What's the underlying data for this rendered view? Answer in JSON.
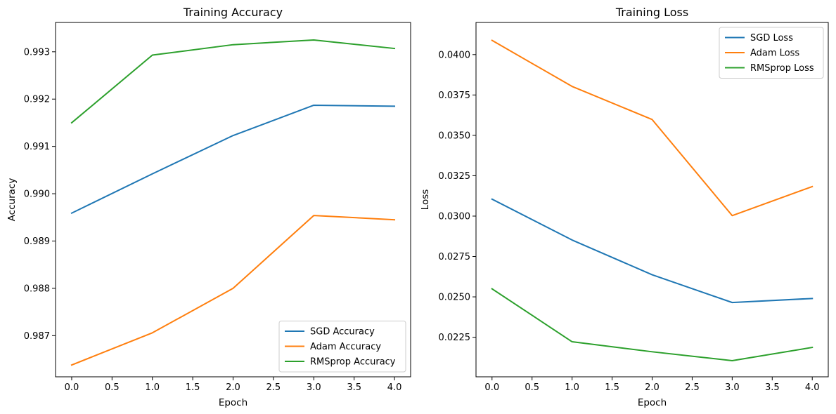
{
  "chart_data": [
    {
      "type": "line",
      "title": "Training Accuracy",
      "xlabel": "Epoch",
      "ylabel": "Accuracy",
      "x": [
        0,
        1,
        2,
        3,
        4
      ],
      "xlim": [
        -0.2,
        4.2
      ],
      "ylim": [
        0.98613,
        0.99362
      ],
      "xticks": [
        0.0,
        0.5,
        1.0,
        1.5,
        2.0,
        2.5,
        3.0,
        3.5,
        4.0
      ],
      "xtick_labels": [
        "0.0",
        "0.5",
        "1.0",
        "1.5",
        "2.0",
        "2.5",
        "3.0",
        "3.5",
        "4.0"
      ],
      "yticks": [
        0.987,
        0.988,
        0.989,
        0.99,
        0.991,
        0.992,
        0.993
      ],
      "ytick_labels": [
        "0.987",
        "0.988",
        "0.989",
        "0.990",
        "0.991",
        "0.992",
        "0.993"
      ],
      "grid": false,
      "legend_position": "lower-right",
      "series": [
        {
          "name": "SGD Accuracy",
          "color": "#1f77b4",
          "values": [
            0.98959,
            0.99042,
            0.99123,
            0.99187,
            0.99185
          ]
        },
        {
          "name": "Adam Accuracy",
          "color": "#ff7f0e",
          "values": [
            0.98638,
            0.98706,
            0.988,
            0.98954,
            0.98945
          ]
        },
        {
          "name": "RMSprop Accuracy",
          "color": "#2ca02c",
          "values": [
            0.9915,
            0.99293,
            0.99315,
            0.99325,
            0.99307
          ]
        }
      ]
    },
    {
      "type": "line",
      "title": "Training Loss",
      "xlabel": "Epoch",
      "ylabel": "Loss",
      "x": [
        0,
        1,
        2,
        3,
        4
      ],
      "xlim": [
        -0.2,
        4.2
      ],
      "ylim": [
        0.02005,
        0.04199
      ],
      "xticks": [
        0.0,
        0.5,
        1.0,
        1.5,
        2.0,
        2.5,
        3.0,
        3.5,
        4.0
      ],
      "xtick_labels": [
        "0.0",
        "0.5",
        "1.0",
        "1.5",
        "2.0",
        "2.5",
        "3.0",
        "3.5",
        "4.0"
      ],
      "yticks": [
        0.0225,
        0.025,
        0.0275,
        0.03,
        0.0325,
        0.035,
        0.0375,
        0.04
      ],
      "ytick_labels": [
        "0.0225",
        "0.0250",
        "0.0275",
        "0.0300",
        "0.0325",
        "0.0350",
        "0.0375",
        "0.0400"
      ],
      "grid": false,
      "legend_position": "upper-right",
      "series": [
        {
          "name": "SGD Loss",
          "color": "#1f77b4",
          "values": [
            0.03105,
            0.02852,
            0.02637,
            0.02465,
            0.0249
          ]
        },
        {
          "name": "Adam Loss",
          "color": "#ff7f0e",
          "values": [
            0.04088,
            0.03803,
            0.03598,
            0.03003,
            0.03183
          ]
        },
        {
          "name": "RMSprop Loss",
          "color": "#2ca02c",
          "values": [
            0.0255,
            0.02222,
            0.0216,
            0.02105,
            0.02187
          ]
        }
      ]
    }
  ]
}
